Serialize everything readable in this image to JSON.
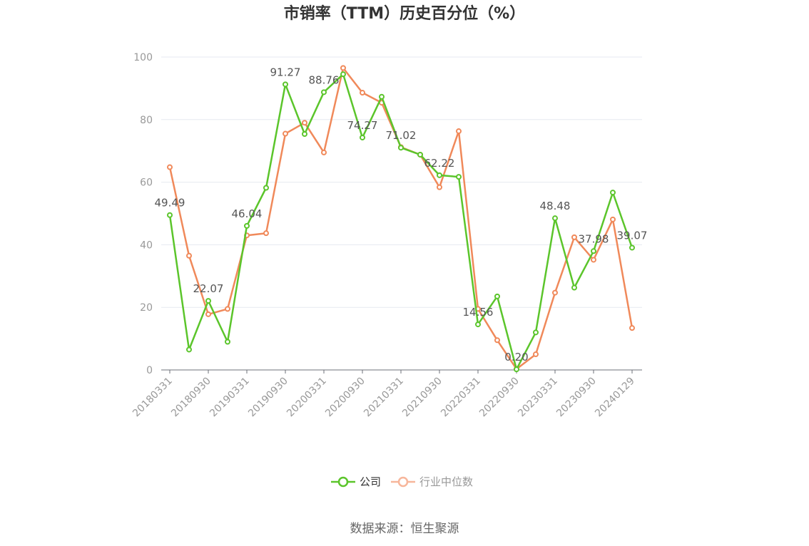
{
  "chart_data": {
    "type": "line",
    "title": "市销率（TTM）历史百分位（%）",
    "xlabel": "",
    "ylabel": "",
    "ylim": [
      0,
      100
    ],
    "yticks": [
      0,
      20,
      40,
      60,
      80,
      100
    ],
    "x": [
      "20180331",
      "20180630",
      "20180930",
      "20181231",
      "20190331",
      "20190630",
      "20190930",
      "20191231",
      "20200331",
      "20200630",
      "20200930",
      "20201231",
      "20210331",
      "20210630",
      "20210930",
      "20211231",
      "20220331",
      "20220630",
      "20220930",
      "20221231",
      "20230331",
      "20230630",
      "20230930",
      "20231231",
      "20240129"
    ],
    "x_tick_labels": [
      "20180331",
      "20180930",
      "20190331",
      "20190930",
      "20200331",
      "20200930",
      "20210331",
      "20210930",
      "20220331",
      "20220930",
      "20230331",
      "20230930",
      "20240129"
    ],
    "grid": true,
    "legend_position": "bottom",
    "series": [
      {
        "name": "公司",
        "color": "#5bc52b",
        "values": [
          49.49,
          6.5,
          22.07,
          9.0,
          46.04,
          58.2,
          91.27,
          75.4,
          88.76,
          94.5,
          74.27,
          87.3,
          71.02,
          68.8,
          62.22,
          61.7,
          14.56,
          23.5,
          0.2,
          12.0,
          48.48,
          26.3,
          37.98,
          56.7,
          39.07
        ],
        "data_labels": {
          "0": "49.49",
          "2": "22.07",
          "4": "46.04",
          "6": "91.27",
          "8": "88.76",
          "10": "74.27",
          "12": "71.02",
          "14": "62.22",
          "16": "14.56",
          "18": "0.20",
          "20": "48.48",
          "22": "37.98",
          "24": "39.07"
        }
      },
      {
        "name": "行业中位数",
        "color": "#f0895a",
        "values": [
          64.8,
          36.5,
          17.8,
          19.5,
          43.0,
          43.7,
          75.5,
          79.0,
          69.5,
          96.5,
          88.6,
          85.4,
          71.2,
          68.8,
          58.4,
          76.3,
          19.5,
          9.5,
          0.3,
          5.0,
          24.7,
          42.4,
          35.2,
          48.1,
          13.4
        ]
      }
    ]
  },
  "source_text": "数据来源：恒生聚源"
}
